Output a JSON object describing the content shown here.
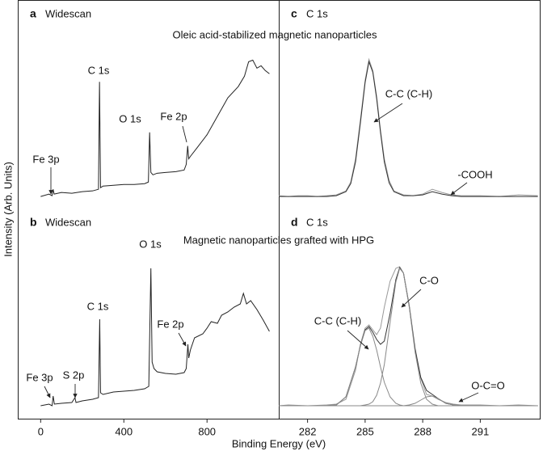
{
  "figure": {
    "y_label": "Intensity (Arb. Units)",
    "x_label": "Binding Energy (eV)",
    "row_titles": [
      "Oleic acid-stabilized magnetic nanoparticles",
      "Magnetic nanoparticles grafted with HPG"
    ]
  },
  "chart_data": [
    {
      "type": "line",
      "panel": "a",
      "title": "Widescan",
      "xlim": [
        -110,
        1145
      ],
      "ylim": [
        0,
        260
      ],
      "x": [
        0,
        40,
        55,
        60,
        65,
        100,
        150,
        200,
        250,
        278,
        283,
        288,
        300,
        350,
        400,
        450,
        500,
        518,
        524,
        530,
        540,
        560,
        600,
        650,
        690,
        700,
        707,
        712,
        720,
        750,
        800,
        850,
        900,
        950,
        980,
        1000,
        1020,
        1040,
        1060,
        1080,
        1100
      ],
      "series": [
        {
          "color": "#222222",
          "values": [
            15,
            18,
            16,
            24,
            18,
            20,
            19,
            21,
            22,
            24,
            158,
            26,
            28,
            29,
            30,
            30,
            31,
            33,
            95,
            45,
            42,
            44,
            45,
            46,
            48,
            55,
            78,
            62,
            65,
            75,
            92,
            115,
            138,
            152,
            165,
            183,
            185,
            175,
            178,
            172,
            168
          ]
        }
      ],
      "annotations": [
        {
          "text": "Fe 3p"
        },
        {
          "text": "C 1s"
        },
        {
          "text": "O 1s"
        },
        {
          "text": "Fe 2p"
        }
      ]
    },
    {
      "type": "line",
      "panel": "b",
      "title": "Widescan",
      "xlim": [
        -110,
        1145
      ],
      "ylim": [
        0,
        260
      ],
      "xticks": [
        0,
        400,
        800
      ],
      "x": [
        0,
        40,
        55,
        60,
        66,
        100,
        150,
        165,
        170,
        200,
        250,
        278,
        284,
        288,
        300,
        350,
        400,
        450,
        500,
        520,
        530,
        536,
        545,
        560,
        600,
        650,
        690,
        700,
        708,
        712,
        720,
        740,
        780,
        800,
        820,
        850,
        870,
        900,
        930,
        960,
        975,
        990,
        1010,
        1040,
        1070,
        1100
      ],
      "series": [
        {
          "color": "#222222",
          "values": [
            16,
            18,
            16,
            28,
            18,
            19,
            20,
            26,
            20,
            22,
            24,
            26,
            123,
            32,
            30,
            33,
            34,
            35,
            37,
            40,
            186,
            70,
            62,
            58,
            56,
            55,
            57,
            62,
            92,
            75,
            85,
            100,
            105,
            112,
            120,
            118,
            128,
            132,
            138,
            142,
            155,
            142,
            146,
            135,
            122,
            108
          ]
        }
      ],
      "annotations": [
        {
          "text": "Fe 3p"
        },
        {
          "text": "S 2p"
        },
        {
          "text": "C 1s"
        },
        {
          "text": "O 1s"
        },
        {
          "text": "Fe 2p"
        }
      ]
    },
    {
      "type": "line",
      "panel": "c",
      "title": "C 1s",
      "xlim": [
        280.5,
        294.1
      ],
      "ylim": [
        0,
        260
      ],
      "x": [
        280.5,
        281,
        281.5,
        282,
        282.5,
        283,
        283.5,
        284,
        284.25,
        284.5,
        284.75,
        285,
        285.2,
        285.4,
        285.6,
        285.8,
        286,
        286.25,
        286.5,
        287,
        287.5,
        288,
        288.5,
        289,
        289.5,
        290,
        291,
        292,
        293,
        294
      ],
      "series": [
        {
          "color": "#999999",
          "values": [
            16,
            15,
            16,
            16,
            15,
            16,
            17,
            22,
            33,
            62,
            110,
            160,
            186,
            172,
            140,
            98,
            62,
            35,
            22,
            17,
            16,
            18,
            24,
            20,
            17,
            16,
            16,
            15,
            17,
            16
          ]
        },
        {
          "color": "#333333",
          "values": [
            15,
            15,
            15,
            15,
            15,
            15,
            16,
            21,
            31,
            58,
            106,
            157,
            183,
            170,
            137,
            95,
            58,
            32,
            21,
            16,
            16,
            17,
            21,
            18,
            16,
            15,
            15,
            15,
            15,
            15
          ]
        }
      ],
      "annotations": [
        {
          "text": "C-C (C-H)"
        },
        {
          "text": "-COOH"
        }
      ]
    },
    {
      "type": "line",
      "panel": "d",
      "title": "C 1s",
      "xlim": [
        280.5,
        294.1
      ],
      "ylim": [
        0,
        260
      ],
      "xticks": [
        282,
        285,
        288,
        291
      ],
      "x": [
        280.5,
        281,
        282,
        283,
        283.5,
        284,
        284.5,
        284.75,
        285,
        285.2,
        285.4,
        285.6,
        285.8,
        286,
        286.3,
        286.6,
        286.8,
        287,
        287.3,
        287.6,
        287.9,
        288.2,
        288.5,
        288.8,
        289.2,
        289.6,
        290,
        291,
        292,
        293,
        294
      ],
      "series": [
        {
          "color": "#999999",
          "values": [
            16,
            17,
            16,
            17,
            18,
            24,
            60,
            92,
            112,
            116,
            110,
            104,
            112,
            138,
            170,
            186,
            188,
            180,
            140,
            88,
            50,
            30,
            28,
            24,
            20,
            18,
            17,
            17,
            16,
            17,
            16
          ]
        },
        {
          "color": "#333333",
          "values": [
            16,
            16,
            16,
            16,
            17,
            27,
            64,
            90,
            110,
            114,
            107,
            98,
            92,
            96,
            130,
            172,
            187,
            180,
            139,
            86,
            51,
            35,
            30,
            25,
            19,
            17,
            16,
            16,
            16,
            16,
            16
          ]
        },
        {
          "color": "#888888",
          "values": [
            16,
            16,
            16,
            16,
            17,
            27,
            64,
            90,
            109,
            112,
            102,
            85,
            64,
            45,
            27,
            19,
            17,
            16,
            16,
            16,
            16,
            16,
            16,
            16,
            16,
            16,
            16,
            16,
            16,
            16,
            16
          ]
        },
        {
          "color": "#888888",
          "values": [
            16,
            16,
            16,
            16,
            16,
            16,
            16,
            16,
            17,
            18,
            21,
            29,
            44,
            67,
            119,
            169,
            186,
            180,
            138,
            83,
            44,
            24,
            18,
            16,
            16,
            16,
            16,
            16,
            16,
            16,
            16
          ]
        },
        {
          "color": "#888888",
          "values": [
            16,
            16,
            16,
            16,
            16,
            16,
            16,
            16,
            16,
            16,
            16,
            16,
            16,
            16,
            16,
            16,
            16,
            16,
            17,
            19,
            23,
            27,
            28,
            25,
            19,
            17,
            16,
            16,
            16,
            16,
            16
          ]
        }
      ],
      "annotations": [
        {
          "text": "C-C (C-H)"
        },
        {
          "text": "C-O"
        },
        {
          "text": "O-C=O"
        }
      ]
    }
  ]
}
